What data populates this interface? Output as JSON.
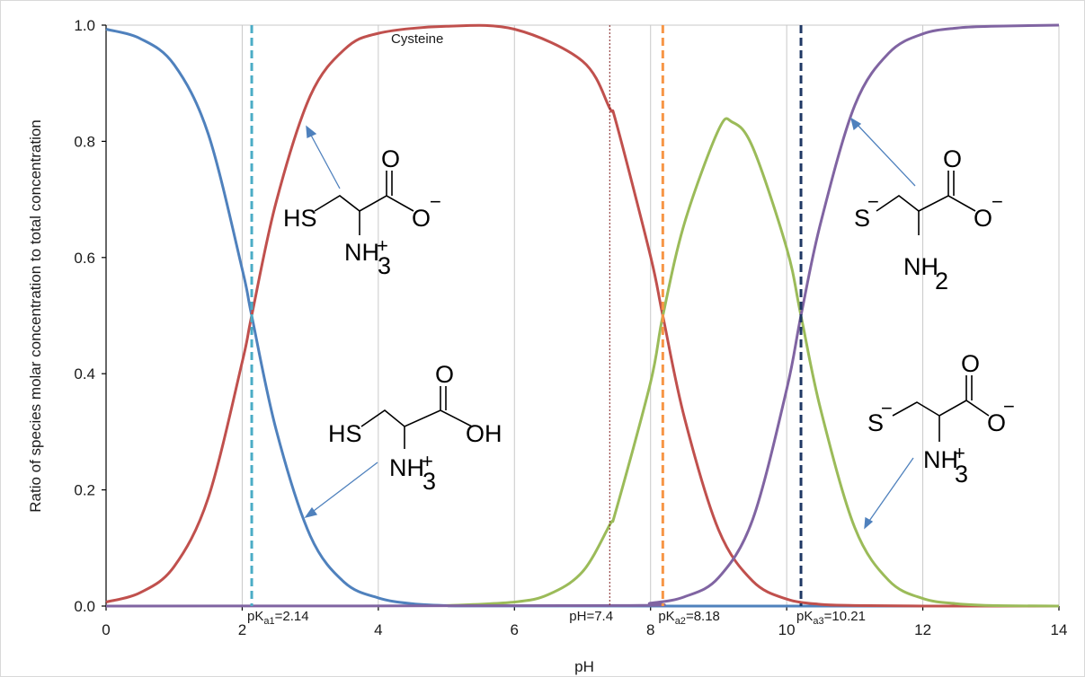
{
  "chart_data": {
    "type": "line",
    "title": "Cysteine",
    "xlabel": "pH",
    "ylabel": "Ratio of species molar concentration to total concentration",
    "xlim": [
      0,
      14
    ],
    "ylim": [
      0,
      1
    ],
    "x_ticks": [
      "0",
      "2",
      "4",
      "6",
      "8",
      "10",
      "12",
      "14"
    ],
    "y_ticks": [
      "0.0",
      "0.2",
      "0.4",
      "0.6",
      "0.8",
      "1.0"
    ],
    "grid": "vertical",
    "pKa": [
      2.14,
      8.18,
      10.21
    ],
    "series": [
      {
        "color": "#4f81bd",
        "x": [
          0,
          0.5,
          1,
          1.5,
          2,
          2.14,
          2.5,
          3,
          3.5,
          4,
          4.5,
          5,
          6,
          14
        ],
        "values": [
          0.993,
          0.977,
          0.932,
          0.813,
          0.58,
          0.5,
          0.303,
          0.121,
          0.041,
          0.014,
          0.004,
          0.001,
          0.0001,
          0
        ]
      },
      {
        "color": "#c0504d",
        "x": [
          0,
          0.5,
          1,
          1.5,
          2,
          2.14,
          2.5,
          3,
          3.5,
          4,
          5,
          6,
          7,
          7.4,
          7.5,
          8,
          8.18,
          8.5,
          9,
          9.5,
          10,
          10.5,
          11,
          12,
          14
        ],
        "values": [
          0.007,
          0.023,
          0.068,
          0.186,
          0.42,
          0.5,
          0.696,
          0.878,
          0.958,
          0.986,
          0.998,
          0.993,
          0.938,
          0.857,
          0.83,
          0.602,
          0.5,
          0.323,
          0.131,
          0.043,
          0.012,
          0.003,
          0.001,
          0,
          0
        ]
      },
      {
        "color": "#9bbb59",
        "x": [
          5,
          6,
          6.5,
          7,
          7.4,
          7.5,
          8,
          8.18,
          8.5,
          9,
          9.2,
          9.5,
          10,
          10.21,
          10.5,
          11,
          11.5,
          12,
          12.5,
          13,
          14
        ],
        "values": [
          0.0007,
          0.007,
          0.02,
          0.059,
          0.14,
          0.168,
          0.385,
          0.499,
          0.66,
          0.82,
          0.833,
          0.79,
          0.616,
          0.5,
          0.338,
          0.135,
          0.044,
          0.013,
          0.004,
          0.001,
          0
        ]
      },
      {
        "color": "#8064a2",
        "x": [
          0,
          7.5,
          8,
          8.5,
          9,
          9.5,
          10,
          10.21,
          10.5,
          11,
          11.5,
          12,
          12.5,
          13,
          14
        ],
        "values": [
          0,
          0.001,
          0.005,
          0.016,
          0.049,
          0.149,
          0.373,
          0.5,
          0.66,
          0.862,
          0.952,
          0.985,
          0.995,
          0.998,
          1.0
        ]
      }
    ],
    "vlines": [
      {
        "x": 2.14,
        "color": "#4bacc6",
        "style": "dashed",
        "label_base": "pK",
        "label_sub": "a1",
        "label_tail": "=2.14"
      },
      {
        "x": 7.4,
        "color": "#7f1f1f",
        "style": "dotted",
        "label_base": "pH=7.4",
        "label_sub": "",
        "label_tail": ""
      },
      {
        "x": 8.18,
        "color": "#f79646",
        "style": "dashed",
        "label_base": "pK",
        "label_sub": "a2",
        "label_tail": "=8.18"
      },
      {
        "x": 10.21,
        "color": "#1f3864",
        "style": "dashed",
        "label_base": "pK",
        "label_sub": "a3",
        "label_tail": "=10.21"
      }
    ]
  },
  "structures": {
    "s1": {
      "sh": "HS",
      "o_top": "O",
      "o_side": "O",
      "o_charge": "−",
      "n": "NH",
      "n_sub": "3",
      "n_charge": "+"
    },
    "s2": {
      "sh": "HS",
      "o_top": "O",
      "o_side": "OH",
      "o_charge": "",
      "n": "NH",
      "n_sub": "3",
      "n_charge": "+"
    },
    "s3": {
      "sh": "S",
      "sh_charge": "−",
      "o_top": "O",
      "o_side": "O",
      "o_charge": "−",
      "n": "NH",
      "n_sub": "2",
      "n_charge": ""
    },
    "s4": {
      "sh": "S",
      "sh_charge": "−",
      "o_top": "O",
      "o_side": "O",
      "o_charge": "−",
      "n": "NH",
      "n_sub": "3",
      "n_charge": "+"
    }
  }
}
